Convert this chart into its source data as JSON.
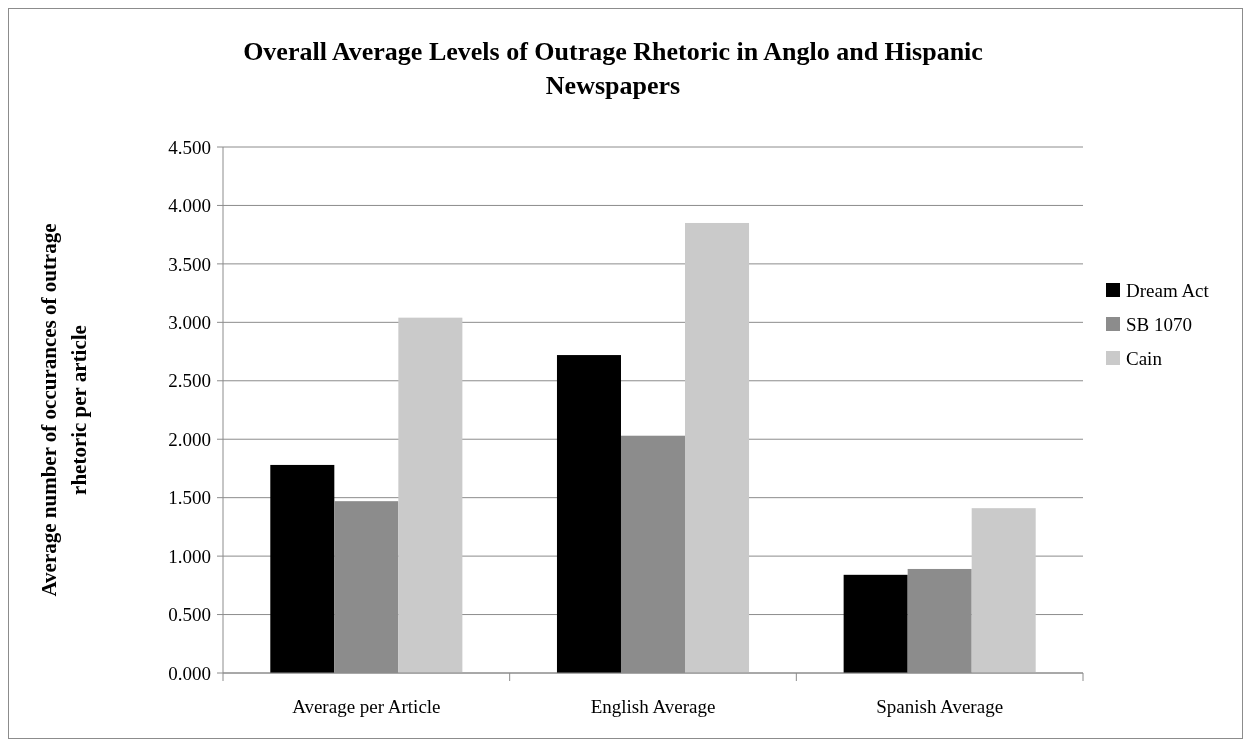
{
  "chart_data": {
    "type": "bar",
    "title": "Overall Average Levels of Outrage Rhetoric in Anglo and Hispanic Newspapers",
    "ylabel": "Average number of occurances of outrage rhetoric per article",
    "categories": [
      "Average per Article",
      "English Average",
      "Spanish Average"
    ],
    "series": [
      {
        "name": "Dream Act",
        "color": "#000000",
        "values": [
          1.78,
          2.72,
          0.84
        ]
      },
      {
        "name": "SB 1070",
        "color": "#8c8c8c",
        "values": [
          1.47,
          2.03,
          0.89
        ]
      },
      {
        "name": "Cain",
        "color": "#cacaca",
        "values": [
          3.04,
          3.85,
          1.41
        ]
      }
    ],
    "ylim": [
      0,
      4.5
    ],
    "yticks": [
      {
        "value": 0,
        "label": "0.000"
      },
      {
        "value": 0.5,
        "label": "0.500"
      },
      {
        "value": 1,
        "label": "1.000"
      },
      {
        "value": 1.5,
        "label": "1.500"
      },
      {
        "value": 2,
        "label": "2.000"
      },
      {
        "value": 2.5,
        "label": "2.500"
      },
      {
        "value": 3,
        "label": "3.000"
      },
      {
        "value": 3.5,
        "label": "3.500"
      },
      {
        "value": 4,
        "label": "4.000"
      },
      {
        "value": 4.5,
        "label": "4.500"
      }
    ],
    "grid": "y",
    "legend": "right"
  }
}
